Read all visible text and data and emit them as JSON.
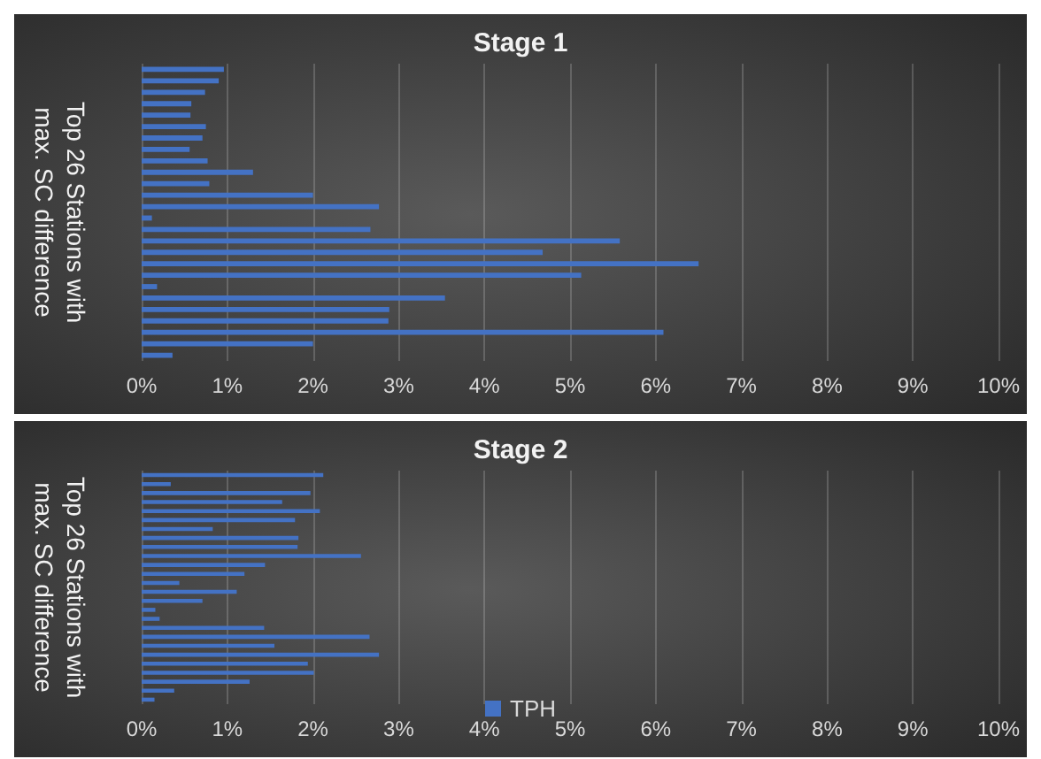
{
  "chart_data": [
    {
      "type": "bar",
      "orientation": "horizontal",
      "title": "Stage 1",
      "ylabel": "Top 26 Stations with max. SC difference",
      "categories": [
        null,
        null,
        null,
        null,
        null,
        null,
        null,
        null,
        null,
        null,
        null,
        null,
        null,
        null,
        null,
        null,
        null,
        null,
        null,
        null,
        null,
        null,
        null,
        null,
        null,
        null
      ],
      "series": [
        {
          "color": "#4472c4",
          "values": [
            0.96,
            0.9,
            0.74,
            0.58,
            0.57,
            0.75,
            0.71,
            0.56,
            0.77,
            1.3,
            0.79,
            2.0,
            2.77,
            0.12,
            2.67,
            5.58,
            4.68,
            6.5,
            5.13,
            0.18,
            3.54,
            2.89,
            2.88,
            6.09,
            2.0,
            0.36
          ]
        }
      ],
      "xlim": [
        0,
        10
      ],
      "xticks": [
        {
          "value": 0,
          "label": "0%"
        },
        {
          "value": 1,
          "label": "1%"
        },
        {
          "value": 2,
          "label": "2%"
        },
        {
          "value": 3,
          "label": "3%"
        },
        {
          "value": 4,
          "label": "4%"
        },
        {
          "value": 5,
          "label": "5%"
        },
        {
          "value": 6,
          "label": "6%"
        },
        {
          "value": 7,
          "label": "7%"
        },
        {
          "value": 8,
          "label": "8%"
        },
        {
          "value": 9,
          "label": "9%"
        },
        {
          "value": 10,
          "label": "10%"
        }
      ],
      "grid": "x",
      "legend": false
    },
    {
      "type": "bar",
      "orientation": "horizontal",
      "title": "Stage 2",
      "ylabel": "Top 26 Stations with max. SC difference",
      "categories": [
        null,
        null,
        null,
        null,
        null,
        null,
        null,
        null,
        null,
        null,
        null,
        null,
        null,
        null,
        null,
        null,
        null,
        null,
        null,
        null,
        null,
        null,
        null,
        null,
        null,
        null
      ],
      "series": [
        {
          "name": "TPH",
          "color": "#4472c4",
          "values": [
            2.12,
            0.34,
            1.97,
            1.64,
            2.08,
            1.79,
            0.83,
            1.83,
            1.82,
            2.56,
            1.44,
            1.2,
            0.44,
            1.11,
            0.71,
            0.16,
            0.21,
            1.43,
            2.66,
            1.55,
            2.77,
            1.94,
            2.01,
            1.26,
            0.38,
            0.15
          ]
        }
      ],
      "xlim": [
        0,
        10
      ],
      "xticks": [
        {
          "value": 0,
          "label": "0%"
        },
        {
          "value": 1,
          "label": "1%"
        },
        {
          "value": 2,
          "label": "2%"
        },
        {
          "value": 3,
          "label": "3%"
        },
        {
          "value": 4,
          "label": "4%"
        },
        {
          "value": 5,
          "label": "5%"
        },
        {
          "value": 6,
          "label": "6%"
        },
        {
          "value": 7,
          "label": "7%"
        },
        {
          "value": 8,
          "label": "8%"
        },
        {
          "value": 9,
          "label": "9%"
        },
        {
          "value": 10,
          "label": "10%"
        }
      ],
      "grid": "x",
      "legend": "bottom"
    }
  ]
}
